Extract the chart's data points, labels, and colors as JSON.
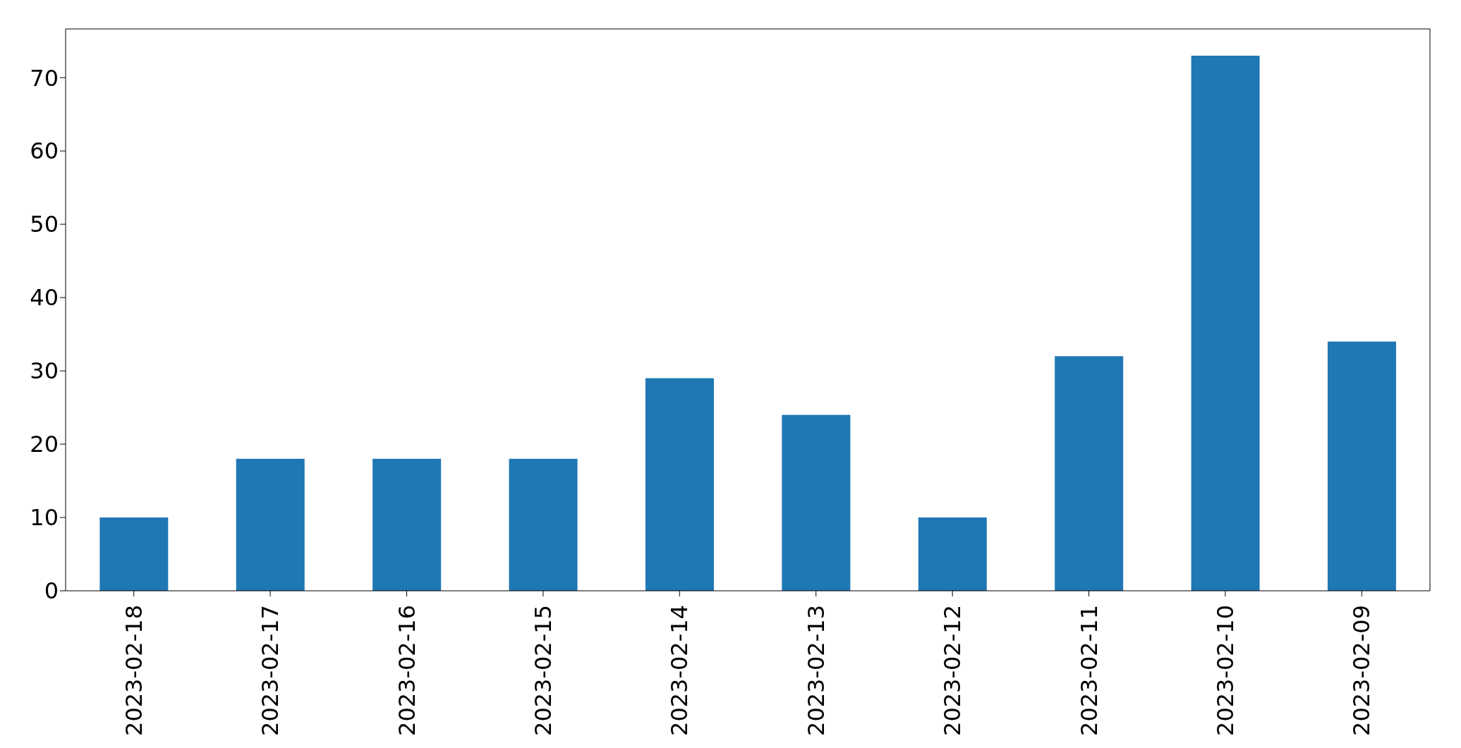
{
  "chart_data": {
    "type": "bar",
    "categories": [
      "2023-02-18",
      "2023-02-17",
      "2023-02-16",
      "2023-02-15",
      "2023-02-14",
      "2023-02-13",
      "2023-02-12",
      "2023-02-11",
      "2023-02-10",
      "2023-02-09"
    ],
    "values": [
      10,
      18,
      18,
      18,
      29,
      24,
      10,
      32,
      73,
      34
    ],
    "color": "#1f77b4",
    "ylim": [
      0,
      76.65
    ],
    "yticks": [
      0,
      10,
      20,
      30,
      40,
      50,
      60,
      70
    ],
    "grid": false
  }
}
